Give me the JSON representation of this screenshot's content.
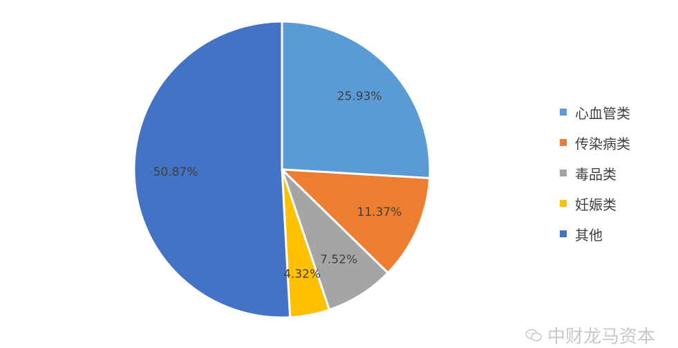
{
  "chart_data": {
    "type": "pie",
    "start_angle_deg": 0,
    "direction": "clockwise",
    "slices": [
      {
        "label": "心血管类",
        "value": 25.93,
        "display": "25.93%",
        "color": "#5b9bd5"
      },
      {
        "label": "传染病类",
        "value": 11.37,
        "display": "11.37%",
        "color": "#ed7d31"
      },
      {
        "label": "毒品类",
        "value": 7.52,
        "display": "7.52%",
        "color": "#a5a5a5"
      },
      {
        "label": "妊娠类",
        "value": 4.32,
        "display": "4.32%",
        "color": "#ffc000"
      },
      {
        "label": "其他",
        "value": 50.87,
        "display": "50.87%",
        "color": "#4472c4"
      }
    ],
    "legend_position": "right",
    "label_position": "inside"
  },
  "watermark": {
    "text": "中财龙马资本",
    "icon": "wechat-icon"
  }
}
